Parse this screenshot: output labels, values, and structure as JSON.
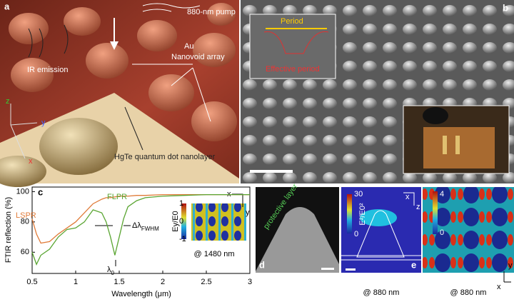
{
  "panel_a": {
    "label": "a",
    "pump": "880-nm pump",
    "array_label_1": "Au",
    "array_label_2": "Nanovoid array",
    "emission": "IR emission",
    "layer": "HgTe quantum dot nanolayer",
    "axes": [
      "z",
      "y",
      "x"
    ]
  },
  "panel_b": {
    "label": "b",
    "period": "Period",
    "effective_period": "Effective period"
  },
  "chart_data": {
    "type": "line",
    "label": "c",
    "xlabel": "Wavelength (μm)",
    "ylabel": "FTIR reflection (%)",
    "x": [
      0.5,
      0.55,
      0.6,
      0.7,
      0.8,
      0.9,
      1.0,
      1.1,
      1.2,
      1.3,
      1.35,
      1.4,
      1.45,
      1.5,
      1.55,
      1.6,
      1.7,
      1.8,
      2.0,
      2.5,
      3.0
    ],
    "series": [
      {
        "name": "LSPR",
        "color": "#e07b39",
        "values": [
          82,
          72,
          66,
          67,
          72,
          76,
          80,
          86,
          92,
          95,
          96,
          96,
          96.5,
          97,
          97,
          97,
          97.5,
          97.5,
          98,
          98,
          98
        ]
      },
      {
        "name": "FLPR",
        "color": "#5aa532",
        "values": [
          60,
          52,
          58,
          62,
          70,
          75,
          76,
          80,
          88,
          86,
          80,
          70,
          58,
          70,
          82,
          90,
          94,
          96,
          97,
          98,
          98
        ]
      }
    ],
    "xlim": [
      0.5,
      3
    ],
    "xticks": [
      0.5,
      1,
      1.5,
      2,
      2.5,
      3
    ],
    "ylim": [
      46,
      103
    ],
    "yticks": [
      60,
      80,
      100
    ],
    "annotations": {
      "fwhm": {
        "text": "Δλ",
        "sub": "FWHM"
      },
      "lambda0": {
        "text": "λ",
        "sub": "0"
      }
    },
    "inset": {
      "colorbar_ticks": [
        1,
        0,
        -1
      ],
      "colorbar_title": "Ey/E0",
      "caption": "@ 1480 nm",
      "axes": [
        "x",
        "y"
      ]
    }
  },
  "panel_d": {
    "label": "d",
    "annotation": "protective layer"
  },
  "panel_e": {
    "label": "e",
    "colorbar_max": 30,
    "colorbar_min": 0,
    "colorbar_title": "E²/E0²",
    "axes": [
      "x",
      "z"
    ],
    "caption": "@ 880 nm"
  },
  "panel_f": {
    "colorbar_max": 4,
    "colorbar_min": 0,
    "axes": [
      "y",
      "x"
    ],
    "caption": "@ 880 nm"
  }
}
